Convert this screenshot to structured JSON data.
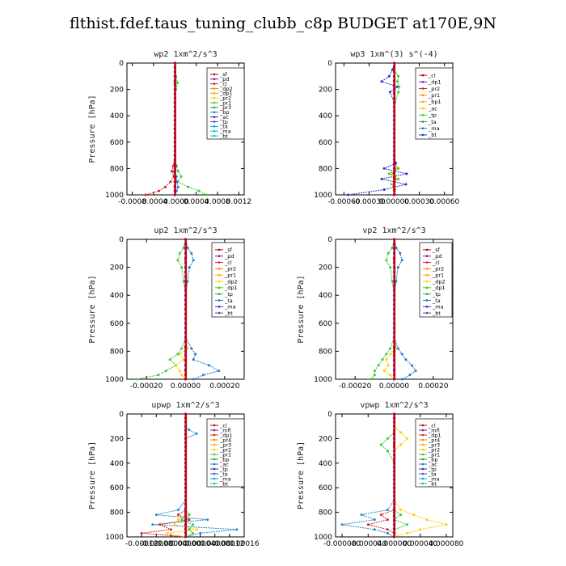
{
  "title": "flthist.fdef.taus_tuning_clubb_c8p  BUDGET at170E,9N",
  "chart_data": [
    {
      "type": "line",
      "title": "wp2   1xm^2/s^3",
      "ylabel": "Pressure  [hPa]",
      "ylim": [
        1000,
        0
      ],
      "xlim": [
        -0.0009,
        0.0013
      ],
      "xticks": [
        -0.0008,
        -0.0004,
        0.0,
        0.0004,
        0.0008,
        0.0012
      ],
      "xtick_labels": [
        "-0.0008",
        "-0.0004",
        "-0.0000",
        "0.0004",
        "0.0008",
        "0.0012"
      ],
      "yticks": [
        0,
        200,
        400,
        600,
        800,
        1000
      ],
      "y": [
        0,
        100,
        150,
        200,
        300,
        400,
        500,
        600,
        700,
        780,
        820,
        860,
        900,
        940,
        970,
        1000
      ],
      "legend": [
        "_sf",
        "_pd",
        "_cl",
        "_dp2",
        "_dp1",
        "_pr2",
        "_pr1",
        "_pr3",
        "_bp",
        "_ac",
        "_tp",
        "_ta",
        "_ma",
        "_bt"
      ],
      "series": [
        {
          "name": "_bt",
          "color": "#00c8c8",
          "values": [
            0,
            0,
            0,
            0,
            0,
            0,
            0,
            0,
            0,
            0,
            0,
            0,
            0,
            0,
            0,
            0
          ]
        },
        {
          "name": "_dp1",
          "color": "#dd2222",
          "values": [
            0,
            0,
            0,
            0,
            0,
            0,
            0,
            0,
            0,
            -3e-05,
            -6e-05,
            -2e-05,
            -8e-05,
            -0.00018,
            -0.0003,
            -0.00055
          ]
        },
        {
          "name": "_pr1",
          "color": "#33cc33",
          "values": [
            0,
            2e-05,
            5e-05,
            2e-05,
            0,
            0,
            0,
            0,
            0,
            3e-05,
            6e-05,
            0.00012,
            5e-05,
            0.00025,
            0.00045,
            0.0006
          ]
        },
        {
          "name": "_tp",
          "color": "#2277cc",
          "values": [
            0,
            0,
            0,
            0,
            0,
            0,
            0,
            0,
            0,
            2e-05,
            -2e-05,
            3e-05,
            4e-05,
            6e-05,
            3e-05,
            0
          ]
        },
        {
          "name": "_pd",
          "color": "#cc0000",
          "values": [
            0,
            0,
            0,
            0,
            0,
            0,
            0,
            0,
            0,
            0,
            0,
            0,
            0,
            0,
            0,
            0
          ]
        }
      ]
    },
    {
      "type": "line",
      "title": "wp3   1xm^(3) s^(-4)",
      "ylabel": "",
      "ylim": [
        1000,
        0
      ],
      "xlim": [
        -0.0007,
        0.0007
      ],
      "xticks": [
        -0.0006,
        -0.0003,
        0.0,
        0.0003,
        0.0006
      ],
      "xtick_labels": [
        "-0.00060",
        "-0.00030",
        "0.00000",
        "0.00030",
        "0.00060"
      ],
      "yticks": [
        0,
        200,
        400,
        600,
        800,
        1000
      ],
      "y": [
        0,
        50,
        100,
        140,
        180,
        220,
        300,
        400,
        500,
        600,
        700,
        760,
        800,
        840,
        880,
        920,
        960,
        1000
      ],
      "legend": [
        "_cl",
        "_dp1",
        "_pr2",
        "_pr1",
        "_bp1",
        "_ac",
        "_tp",
        "_ta",
        "_ma",
        "_bt"
      ],
      "series": [
        {
          "name": "_bt",
          "color": "#00c8c8",
          "values": [
            0,
            0,
            0,
            0,
            0,
            0,
            0,
            0,
            0,
            0,
            0,
            0,
            0,
            0,
            0,
            0,
            0,
            0
          ]
        },
        {
          "name": "_tp",
          "color": "#2233cc",
          "values": [
            0,
            -2e-05,
            -6e-05,
            -0.00015,
            4e-05,
            -5e-05,
            0,
            0,
            0,
            0,
            0,
            2e-05,
            -0.00012,
            0.00015,
            -0.00015,
            0.00014,
            -0.00012,
            -0.00055
          ]
        },
        {
          "name": "_ac",
          "color": "#33cc33",
          "values": [
            0,
            0,
            5e-05,
            4e-05,
            6e-05,
            5e-05,
            1e-05,
            0,
            0,
            0,
            0,
            0,
            5e-05,
            -6e-05,
            5e-05,
            -3e-05,
            1e-05,
            0
          ]
        },
        {
          "name": "_pr2",
          "color": "#ffaa00",
          "values": [
            0,
            0,
            0,
            0,
            0,
            0,
            0,
            0,
            0,
            0,
            0,
            0,
            2e-05,
            -2e-05,
            3e-05,
            -2e-05,
            1e-05,
            0
          ]
        },
        {
          "name": "_cl",
          "color": "#cc0000",
          "values": [
            0,
            0,
            0,
            0,
            0,
            0,
            0,
            0,
            0,
            0,
            0,
            0,
            0,
            0,
            0,
            0,
            0,
            0
          ]
        }
      ]
    },
    {
      "type": "line",
      "title": "up2   1xm^2/s^3",
      "ylabel": "Pressure  [hPa]",
      "ylim": [
        1000,
        0
      ],
      "xlim": [
        -0.0003,
        0.0003
      ],
      "xticks": [
        -0.0002,
        0.0,
        0.0002
      ],
      "xtick_labels": [
        "-0.00020",
        "0.00000",
        "0.00020"
      ],
      "yticks": [
        0,
        200,
        400,
        600,
        800,
        1000
      ],
      "y": [
        0,
        60,
        100,
        150,
        200,
        300,
        400,
        500,
        600,
        700,
        780,
        820,
        860,
        900,
        940,
        970,
        1000
      ],
      "legend": [
        "_sf",
        "_pd",
        "_cl",
        "_pr2",
        "_pr1",
        "_dp2",
        "_dp1",
        "_tp",
        "_ta",
        "_ma",
        "_bt"
      ],
      "series": [
        {
          "name": "_bt",
          "color": "#00c8c8",
          "values": [
            0,
            0,
            0,
            0,
            0,
            0,
            0,
            0,
            0,
            0,
            0,
            0,
            0,
            0,
            0,
            0,
            0
          ]
        },
        {
          "name": "_dp1",
          "color": "#33cc33",
          "values": [
            0,
            -1e-05,
            -3e-05,
            -4e-05,
            -2e-05,
            -1e-05,
            0,
            0,
            0,
            0,
            -2e-05,
            -4e-05,
            -8e-05,
            -5e-05,
            -0.0001,
            -0.00014,
            -0.00025
          ]
        },
        {
          "name": "_tp",
          "color": "#2277cc",
          "values": [
            0,
            1e-05,
            3e-05,
            4e-05,
            2e-05,
            1e-05,
            0,
            0,
            0,
            0,
            3e-05,
            5e-05,
            4e-05,
            0.00012,
            0.00017,
            9e-05,
            4e-05
          ]
        },
        {
          "name": "_pr1",
          "color": "#ffcc00",
          "values": [
            0,
            0,
            0,
            0,
            0,
            0,
            0,
            0,
            0,
            0,
            1e-05,
            -3e-05,
            -1e-05,
            -5e-05,
            -3e-05,
            -2e-05,
            0
          ]
        },
        {
          "name": "_pd",
          "color": "#cc0000",
          "values": [
            0,
            0,
            0,
            0,
            0,
            0,
            0,
            0,
            0,
            0,
            0,
            0,
            0,
            0,
            0,
            0,
            0
          ]
        }
      ]
    },
    {
      "type": "line",
      "title": "vp2   1xm^2/s^3",
      "ylabel": "Pressure  [hPa]",
      "ylim": [
        1000,
        0
      ],
      "xlim": [
        -0.0003,
        0.0003
      ],
      "xticks": [
        -0.0002,
        0.0,
        0.0002
      ],
      "xtick_labels": [
        "-0.00020",
        "0.00000",
        "0.00020"
      ],
      "yticks": [
        0,
        200,
        400,
        600,
        800,
        1000
      ],
      "y": [
        0,
        60,
        100,
        150,
        200,
        300,
        400,
        500,
        600,
        700,
        780,
        820,
        860,
        900,
        940,
        970,
        1000
      ],
      "legend": [
        "_sf",
        "_pd",
        "_cl",
        "_pr2",
        "_pr1",
        "_dp2",
        "_dp1",
        "_tp",
        "_ta",
        "_ma",
        "_bt"
      ],
      "series": [
        {
          "name": "_bt",
          "color": "#00c8c8",
          "values": [
            0,
            0,
            0,
            0,
            0,
            0,
            0,
            0,
            0,
            0,
            0,
            0,
            0,
            0,
            0,
            0,
            0
          ]
        },
        {
          "name": "_dp1",
          "color": "#33cc33",
          "values": [
            0,
            -1e-05,
            -3e-05,
            -4e-05,
            -2e-05,
            -1e-05,
            0,
            0,
            0,
            0,
            -2e-05,
            -4e-05,
            -6e-05,
            -8e-05,
            -0.0001,
            -0.0001,
            -0.00012
          ]
        },
        {
          "name": "_tp",
          "color": "#2277cc",
          "values": [
            0,
            1e-05,
            3e-05,
            4e-05,
            2e-05,
            1e-05,
            0,
            0,
            0,
            0,
            2e-05,
            4e-05,
            6e-05,
            9e-05,
            0.00011,
            8e-05,
            4e-05
          ]
        },
        {
          "name": "_pr1",
          "color": "#ffcc00",
          "values": [
            0,
            0,
            0,
            0,
            0,
            0,
            0,
            0,
            0,
            0,
            1e-05,
            -2e-05,
            -4e-05,
            -3e-05,
            -5e-05,
            -2e-05,
            0
          ]
        },
        {
          "name": "_pd",
          "color": "#cc0000",
          "values": [
            0,
            0,
            0,
            0,
            0,
            0,
            0,
            0,
            0,
            0,
            0,
            0,
            0,
            0,
            0,
            0,
            0
          ]
        }
      ]
    },
    {
      "type": "line",
      "title": "upwp   1xm^2/s^3",
      "ylabel": "Pressure  [hPa]",
      "ylim": [
        1000,
        0
      ],
      "xlim": [
        -0.00016,
        0.00016
      ],
      "xticks": [
        -0.00012,
        -8e-05,
        -4e-05,
        0.0,
        4e-05,
        8e-05,
        0.00012,
        0.00016
      ],
      "xtick_labels": [
        "-0.00012",
        "-0.00008",
        "-0.00004",
        "0.00000",
        "0.00004",
        "0.00008",
        "0.00012",
        "0.00016"
      ],
      "yticks": [
        0,
        200,
        400,
        600,
        800,
        1000
      ],
      "y": [
        0,
        100,
        130,
        160,
        200,
        300,
        400,
        500,
        600,
        700,
        780,
        820,
        860,
        900,
        940,
        970,
        1000
      ],
      "legend": [
        "_cl",
        "_mfl",
        "_dp1",
        "_pr4",
        "_pr3",
        "_pr2",
        "_pr1",
        "_bp",
        "_ac",
        "_tp",
        "_ta",
        "_ma",
        "_bt"
      ],
      "series": [
        {
          "name": "_bt",
          "color": "#00c8c8",
          "values": [
            0,
            0,
            0,
            0,
            0,
            0,
            0,
            0,
            0,
            0,
            0,
            0,
            0,
            0,
            0,
            0,
            0
          ]
        },
        {
          "name": "_tp",
          "color": "#2288cc",
          "values": [
            0,
            0,
            1e-05,
            3e-05,
            0,
            0,
            0,
            0,
            0,
            0,
            -2e-05,
            -8e-05,
            6e-05,
            -9e-05,
            0.00014,
            4e-05,
            0
          ]
        },
        {
          "name": "_dp1",
          "color": "#dd2222",
          "values": [
            0,
            0,
            0,
            0,
            0,
            0,
            0,
            0,
            0,
            0,
            0,
            -2e-05,
            1e-05,
            -7e-05,
            -4e-05,
            -0.00012,
            0
          ]
        },
        {
          "name": "_pr1",
          "color": "#ffcc00",
          "values": [
            0,
            0,
            0,
            0,
            0,
            0,
            0,
            0,
            0,
            0,
            0,
            1e-05,
            -2e-05,
            -3e-05,
            3e-05,
            -5e-05,
            0
          ]
        },
        {
          "name": "_ac",
          "color": "#33cc33",
          "values": [
            0,
            0,
            0,
            0,
            0,
            0,
            0,
            0,
            0,
            0,
            0,
            1e-05,
            -1e-05,
            2e-05,
            1e-05,
            2e-05,
            0
          ]
        },
        {
          "name": "_cl",
          "color": "#8822aa",
          "values": [
            0,
            0,
            0,
            0,
            0,
            0,
            0,
            0,
            0,
            0,
            0,
            0,
            0,
            0,
            0,
            0,
            0
          ]
        }
      ]
    },
    {
      "type": "line",
      "title": "vpwp   1xm^2/s^3",
      "ylabel": "Pressure  [hPa]",
      "ylim": [
        1000,
        0
      ],
      "xlim": [
        -9e-05,
        9e-05
      ],
      "xticks": [
        -8e-05,
        -4e-05,
        0.0,
        4e-05,
        8e-05
      ],
      "xtick_labels": [
        "-0.000080",
        "-0.000040",
        "0.000000",
        "0.000040",
        "0.000080"
      ],
      "yticks": [
        0,
        200,
        400,
        600,
        800,
        1000
      ],
      "y": [
        0,
        100,
        150,
        200,
        250,
        300,
        400,
        500,
        600,
        700,
        780,
        820,
        860,
        900,
        940,
        970,
        1000
      ],
      "legend": [
        "_cl",
        "_mfl",
        "_dp1",
        "_pr4",
        "_pr3",
        "_pr2",
        "_pr1",
        "_bp",
        "_ac",
        "_tp",
        "_ta",
        "_ma",
        "_bt"
      ],
      "series": [
        {
          "name": "_bt",
          "color": "#00c8c8",
          "values": [
            0,
            0,
            0,
            0,
            0,
            0,
            0,
            0,
            0,
            0,
            0,
            0,
            0,
            0,
            0,
            0,
            0
          ]
        },
        {
          "name": "_tp",
          "color": "#2288cc",
          "values": [
            0,
            0,
            0,
            0,
            0,
            0,
            0,
            0,
            0,
            0,
            -1e-05,
            -5e-05,
            -3e-05,
            -8e-05,
            -3e-05,
            -1e-05,
            0
          ]
        },
        {
          "name": "_pr1",
          "color": "#ffcc00",
          "values": [
            0,
            0,
            1e-05,
            2e-05,
            1e-05,
            0,
            0,
            0,
            0,
            0,
            1e-05,
            3e-05,
            5e-05,
            8e-05,
            4e-05,
            2e-05,
            0
          ]
        },
        {
          "name": "_dp1",
          "color": "#dd2222",
          "values": [
            0,
            0,
            0,
            0,
            0,
            0,
            0,
            0,
            0,
            0,
            0,
            -2e-05,
            -1e-05,
            -4e-05,
            -1e-05,
            0,
            0
          ]
        },
        {
          "name": "_ac",
          "color": "#33cc33",
          "values": [
            0,
            0,
            0,
            -1e-05,
            -2e-05,
            -1e-05,
            0,
            0,
            0,
            0,
            0,
            1e-05,
            0,
            2e-05,
            0,
            0,
            0
          ]
        },
        {
          "name": "_cl",
          "color": "#8822aa",
          "values": [
            0,
            0,
            0,
            0,
            0,
            0,
            0,
            0,
            0,
            0,
            0,
            0,
            0,
            0,
            0,
            0,
            0
          ]
        }
      ]
    }
  ]
}
